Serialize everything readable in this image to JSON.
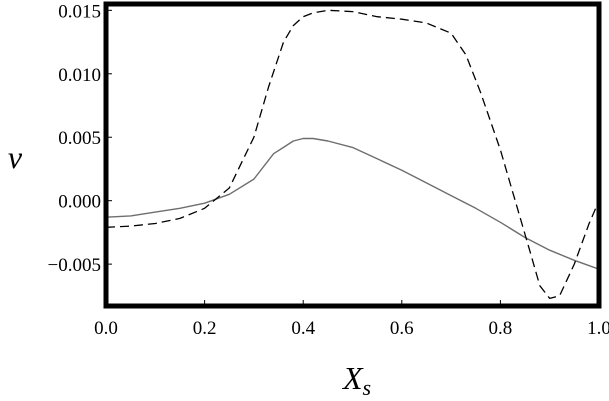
{
  "chart_data": {
    "type": "line",
    "title": "",
    "xlabel": "X",
    "xlabel_subscript": "s",
    "ylabel": "v",
    "xlim": [
      0.0,
      1.0
    ],
    "ylim": [
      -0.0083,
      0.0155
    ],
    "x_ticks": [
      0.0,
      0.2,
      0.4,
      0.6,
      0.8,
      1.0
    ],
    "x_tick_labels": [
      "0.0",
      "0.2",
      "0.4",
      "0.6",
      "0.8",
      "1.0"
    ],
    "y_ticks": [
      -0.005,
      0.0,
      0.005,
      0.01,
      0.015
    ],
    "y_tick_labels": [
      "−0.005",
      "0.000",
      "0.005",
      "0.010",
      "0.015"
    ],
    "grid": false,
    "legend": false,
    "series": [
      {
        "style": "solid",
        "color": "#6e6e6e",
        "x": [
          0.0,
          0.05,
          0.1,
          0.15,
          0.2,
          0.25,
          0.3,
          0.34,
          0.36,
          0.38,
          0.4,
          0.42,
          0.45,
          0.5,
          0.55,
          0.6,
          0.65,
          0.7,
          0.75,
          0.8,
          0.85,
          0.9,
          0.95,
          1.0
        ],
        "y": [
          -0.0013,
          -0.0012,
          -0.0009,
          -0.0006,
          -0.0002,
          0.0005,
          0.0017,
          0.0037,
          0.0042,
          0.0047,
          0.0049,
          0.0049,
          0.0047,
          0.0042,
          0.0033,
          0.0024,
          0.0014,
          0.0004,
          -0.0006,
          -0.0017,
          -0.0029,
          -0.0039,
          -0.0047,
          -0.0054
        ]
      },
      {
        "style": "dashed",
        "color": "#000000",
        "x": [
          0.0,
          0.05,
          0.1,
          0.15,
          0.2,
          0.25,
          0.3,
          0.33,
          0.36,
          0.38,
          0.4,
          0.42,
          0.45,
          0.5,
          0.55,
          0.6,
          0.65,
          0.7,
          0.73,
          0.76,
          0.8,
          0.83,
          0.86,
          0.88,
          0.9,
          0.92,
          0.95,
          0.98,
          1.0
        ],
        "y": [
          -0.0021,
          -0.002,
          -0.0018,
          -0.0014,
          -0.0006,
          0.001,
          0.005,
          0.009,
          0.0125,
          0.0138,
          0.0145,
          0.0148,
          0.015,
          0.0149,
          0.0145,
          0.0143,
          0.014,
          0.0132,
          0.0115,
          0.0085,
          0.004,
          0.0,
          -0.004,
          -0.0067,
          -0.0077,
          -0.0075,
          -0.005,
          -0.0018,
          0.0
        ]
      }
    ]
  }
}
